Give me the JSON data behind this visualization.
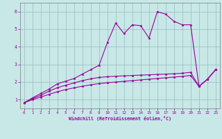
{
  "bg_color": "#c8e8e8",
  "line_color": "#990099",
  "grid_color": "#99bbbb",
  "xlabel": "Windchill (Refroidissement éolien,°C)",
  "xlim": [
    -0.5,
    23.5
  ],
  "ylim": [
    0.5,
    6.5
  ],
  "yticks": [
    1,
    2,
    3,
    4,
    5,
    6
  ],
  "xticks": [
    0,
    1,
    2,
    3,
    4,
    5,
    6,
    7,
    8,
    9,
    10,
    11,
    12,
    13,
    14,
    15,
    16,
    17,
    18,
    19,
    20,
    21,
    22,
    23
  ],
  "curve1_x": [
    0,
    1,
    2,
    3,
    4,
    5,
    6,
    7,
    8,
    9,
    10,
    11,
    12,
    13,
    14,
    15,
    16,
    17,
    18,
    19,
    20,
    21,
    22,
    23
  ],
  "curve1_y": [
    0.82,
    1.1,
    1.35,
    1.6,
    1.9,
    2.05,
    2.2,
    2.45,
    2.7,
    2.95,
    4.25,
    5.35,
    4.75,
    5.25,
    5.2,
    4.5,
    6.0,
    5.85,
    5.45,
    5.25,
    5.25,
    1.75,
    2.15,
    2.7
  ],
  "curve2_x": [
    0,
    1,
    2,
    3,
    4,
    5,
    6,
    7,
    8,
    9,
    10,
    11,
    12,
    13,
    14,
    15,
    16,
    17,
    18,
    19,
    20,
    21,
    22,
    23
  ],
  "curve2_y": [
    0.82,
    1.05,
    1.25,
    1.48,
    1.68,
    1.82,
    1.95,
    2.08,
    2.18,
    2.26,
    2.3,
    2.33,
    2.35,
    2.37,
    2.39,
    2.41,
    2.43,
    2.45,
    2.47,
    2.5,
    2.55,
    1.75,
    2.15,
    2.7
  ],
  "curve3_x": [
    0,
    1,
    2,
    3,
    4,
    5,
    6,
    7,
    8,
    9,
    10,
    11,
    12,
    13,
    14,
    15,
    16,
    17,
    18,
    19,
    20,
    21,
    22,
    23
  ],
  "curve3_y": [
    0.82,
    1.0,
    1.15,
    1.3,
    1.45,
    1.57,
    1.67,
    1.76,
    1.84,
    1.91,
    1.96,
    2.0,
    2.04,
    2.08,
    2.12,
    2.16,
    2.2,
    2.24,
    2.28,
    2.32,
    2.37,
    1.75,
    2.15,
    2.7
  ]
}
